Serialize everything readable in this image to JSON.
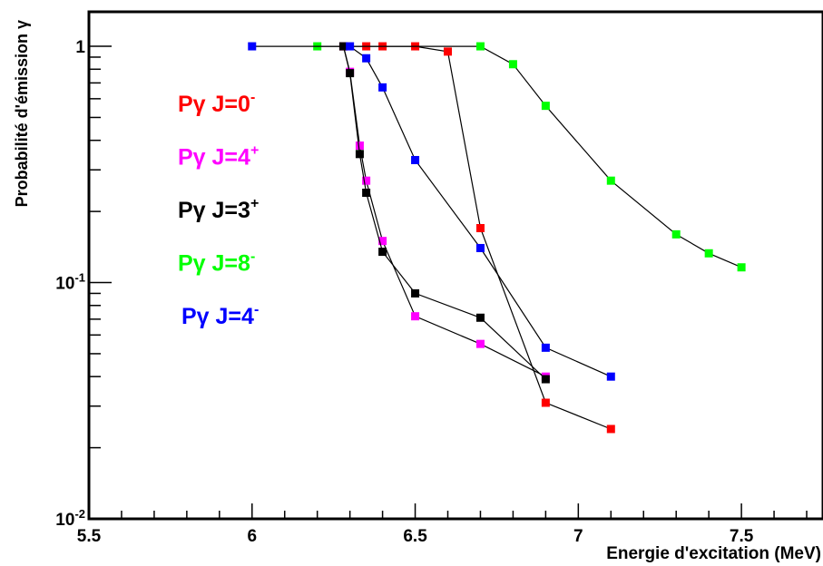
{
  "chart_data": {
    "type": "scatter",
    "title": "",
    "xlabel": "Energie d'excitation (MeV)",
    "ylabel": "Probabilité d'émission γ",
    "xlim": [
      5.5,
      7.75
    ],
    "ylim": [
      0.01,
      1.4
    ],
    "y_scale": "log",
    "grid": false,
    "lines_connect_points": true,
    "x_ticks": [
      5.5,
      6,
      6.5,
      7,
      7.5
    ],
    "x_tick_labels": [
      "5.5",
      "6",
      "6.5",
      "7",
      "7.5"
    ],
    "y_ticks": [
      {
        "value": 1,
        "base": "1",
        "exp": ""
      },
      {
        "value": 0.1,
        "base": "10",
        "exp": "-1"
      },
      {
        "value": 0.01,
        "base": "10",
        "exp": "-2"
      }
    ],
    "legend_placement": "left",
    "series": [
      {
        "name": "Pγ J=0",
        "name_sup": "-",
        "color": "#ff0000",
        "x": [
          6.28,
          6.35,
          6.4,
          6.5,
          6.6,
          6.7,
          6.9,
          7.1
        ],
        "y": [
          1.0,
          1.0,
          1.0,
          1.0,
          0.95,
          0.17,
          0.031,
          0.024
        ]
      },
      {
        "name": "Pγ J=4",
        "name_sup": "+",
        "color": "#ff00ff",
        "x": [
          6.28,
          6.3,
          6.33,
          6.35,
          6.4,
          6.5,
          6.7,
          6.9
        ],
        "y": [
          1.0,
          0.78,
          0.38,
          0.27,
          0.15,
          0.072,
          0.055,
          0.04
        ]
      },
      {
        "name": "Pγ J=3",
        "name_sup": "+",
        "color": "#000000",
        "x": [
          6.28,
          6.3,
          6.33,
          6.35,
          6.4,
          6.5,
          6.7,
          6.9
        ],
        "y": [
          1.0,
          0.77,
          0.35,
          0.24,
          0.135,
          0.09,
          0.071,
          0.039
        ]
      },
      {
        "name": "Pγ J=8",
        "name_sup": "-",
        "color": "#00ff00",
        "x": [
          6.2,
          6.7,
          6.8,
          6.9,
          7.1,
          7.3,
          7.4,
          7.5
        ],
        "y": [
          1.0,
          1.0,
          0.84,
          0.56,
          0.27,
          0.16,
          0.133,
          0.116
        ]
      },
      {
        "name": "Pγ J=4",
        "name_sup": "-",
        "color": "#0000ff",
        "x": [
          6.0,
          6.3,
          6.35,
          6.4,
          6.5,
          6.7,
          6.9,
          7.1
        ],
        "y": [
          1.0,
          1.0,
          0.89,
          0.67,
          0.33,
          0.14,
          0.053,
          0.04
        ]
      }
    ]
  }
}
